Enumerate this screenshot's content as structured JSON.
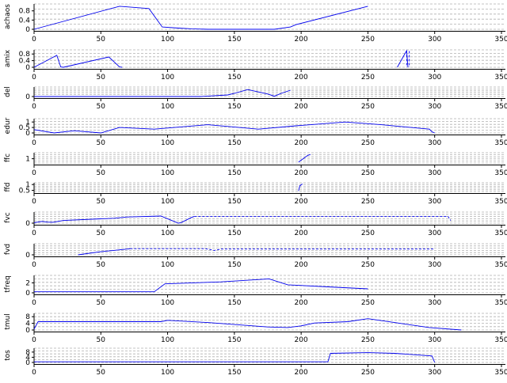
{
  "chart_data": [
    {
      "type": "line",
      "ylabel": "achaos",
      "ylim": [
        0,
        1.1
      ],
      "yticks": [
        0,
        0.4,
        0.8
      ],
      "xlim": [
        0,
        350
      ],
      "xticks": [
        0,
        50,
        100,
        150,
        200,
        250,
        300,
        350
      ],
      "segments": [
        {
          "style": "solid",
          "points": [
            [
              0,
              0
            ],
            [
              64,
              1.0
            ],
            [
              86,
              0.9
            ],
            [
              96,
              0.1
            ],
            [
              108,
              0.05
            ],
            [
              118,
              0.02
            ],
            [
              130,
              0
            ],
            [
              180,
              0
            ],
            [
              192,
              0.1
            ],
            [
              196,
              0.2
            ],
            [
              250,
              1.0
            ]
          ]
        }
      ]
    },
    {
      "type": "line",
      "ylabel": "amix",
      "ylim": [
        0,
        1.05
      ],
      "yticks": [
        0,
        0.4,
        0.8
      ],
      "xlim": [
        0,
        350
      ],
      "xticks": [
        0,
        50,
        100,
        150,
        200,
        250,
        300,
        350
      ],
      "segments": [
        {
          "style": "solid",
          "points": [
            [
              0,
              0
            ],
            [
              17,
              0.72
            ],
            [
              20,
              0.02
            ],
            [
              22,
              0
            ],
            [
              56,
              0.62
            ],
            [
              64,
              0.02
            ],
            [
              66,
              0
            ]
          ]
        },
        {
          "style": "solid",
          "points": [
            [
              272,
              0
            ],
            [
              279,
              1.0
            ],
            [
              280,
              0
            ]
          ]
        },
        {
          "style": "dashed",
          "points": [
            [
              279,
              0.98
            ],
            [
              279,
              0
            ]
          ]
        },
        {
          "style": "dashed",
          "points": [
            [
              281,
              0.98
            ],
            [
              281,
              0
            ]
          ]
        }
      ]
    },
    {
      "type": "line",
      "ylabel": "del",
      "ylim": [
        0,
        0.3
      ],
      "yticks": [
        0
      ],
      "xlim": [
        0,
        350
      ],
      "xticks": [
        0,
        50,
        100,
        150,
        200,
        250,
        300,
        350
      ],
      "segments": [
        {
          "style": "solid",
          "points": [
            [
              0,
              0
            ],
            [
              125,
              0
            ],
            [
              145,
              0.05
            ],
            [
              150,
              0.1
            ],
            [
              160,
              0.22
            ],
            [
              175,
              0.08
            ],
            [
              180,
              0.01
            ],
            [
              185,
              0.1
            ],
            [
              192,
              0.2
            ]
          ]
        }
      ]
    },
    {
      "type": "line",
      "ylabel": "edur",
      "ylim": [
        0,
        1.3
      ],
      "yticks": [
        0,
        0.5,
        1
      ],
      "xlim": [
        0,
        350
      ],
      "xticks": [
        0,
        50,
        100,
        150,
        200,
        250,
        300,
        350
      ],
      "segments": [
        {
          "style": "solid",
          "points": [
            [
              0,
              0.3
            ],
            [
              15,
              0
            ],
            [
              30,
              0.2
            ],
            [
              50,
              0
            ],
            [
              64,
              0.5
            ],
            [
              90,
              0.35
            ],
            [
              130,
              0.75
            ],
            [
              168,
              0.35
            ],
            [
              196,
              0.65
            ],
            [
              233,
              1.0
            ],
            [
              260,
              0.75
            ],
            [
              296,
              0.35
            ],
            [
              298,
              0.1
            ],
            [
              300,
              0
            ]
          ]
        }
      ]
    },
    {
      "type": "line",
      "ylabel": "ffc",
      "ylim": [
        0.75,
        1.35
      ],
      "yticks": [
        1
      ],
      "xlim": [
        0,
        350
      ],
      "xticks": [
        0,
        50,
        100,
        150,
        200,
        250,
        300,
        350
      ],
      "segments": [
        {
          "style": "solid",
          "points": [
            [
              198,
              0.8
            ],
            [
              205,
              1.2
            ],
            [
              207,
              1.25
            ]
          ]
        }
      ]
    },
    {
      "type": "line",
      "ylabel": "ffd",
      "ylim": [
        0.4,
        1.15
      ],
      "yticks": [
        0.5,
        1
      ],
      "xlim": [
        0,
        350
      ],
      "xticks": [
        0,
        50,
        100,
        150,
        200,
        250,
        300,
        350
      ],
      "segments": [
        {
          "style": "solid",
          "points": [
            [
              198,
              0.45
            ],
            [
              199,
              0.9
            ],
            [
              201,
              1.05
            ]
          ]
        }
      ]
    },
    {
      "type": "line",
      "ylabel": "fvc",
      "ylim": [
        0,
        1.25
      ],
      "yticks": [
        0
      ],
      "xlim": [
        0,
        350
      ],
      "xticks": [
        0,
        50,
        100,
        150,
        200,
        250,
        300,
        350
      ],
      "segments": [
        {
          "style": "solid",
          "points": [
            [
              0,
              0.05
            ],
            [
              6,
              0.2
            ],
            [
              10,
              0.12
            ],
            [
              14,
              0.1
            ],
            [
              18,
              0.2
            ],
            [
              22,
              0.3
            ],
            [
              60,
              0.55
            ],
            [
              70,
              0.7
            ],
            [
              95,
              0.8
            ],
            [
              108,
              0
            ],
            [
              110,
              0.05
            ],
            [
              118,
              0.65
            ],
            [
              120,
              0.75
            ]
          ]
        },
        {
          "style": "dashed",
          "points": [
            [
              120,
              0.75
            ],
            [
              310,
              0.75
            ],
            [
              312,
              0.3
            ]
          ]
        }
      ]
    },
    {
      "type": "line",
      "ylabel": "fvd",
      "ylim": [
        0,
        1.25
      ],
      "yticks": [
        0
      ],
      "xlim": [
        0,
        350
      ],
      "xticks": [
        0,
        50,
        100,
        150,
        200,
        250,
        300,
        350
      ],
      "segments": [
        {
          "style": "solid",
          "points": [
            [
              33,
              0
            ],
            [
              50,
              0.35
            ],
            [
              70,
              0.65
            ],
            [
              72,
              0.7
            ]
          ]
        },
        {
          "style": "dashed",
          "points": [
            [
              72,
              0.7
            ],
            [
              128,
              0.7
            ],
            [
              135,
              0.5
            ],
            [
              140,
              0.65
            ],
            [
              300,
              0.65
            ]
          ]
        }
      ]
    },
    {
      "type": "line",
      "ylabel": "tfreq",
      "ylim": [
        0,
        3.5
      ],
      "yticks": [
        0,
        2
      ],
      "xlim": [
        0,
        350
      ],
      "xticks": [
        0,
        50,
        100,
        150,
        200,
        250,
        300,
        350
      ],
      "segments": [
        {
          "style": "solid",
          "points": [
            [
              0,
              0.2
            ],
            [
              90,
              0.2
            ],
            [
              98,
              1.8
            ],
            [
              140,
              2.2
            ],
            [
              176,
              2.8
            ],
            [
              190,
              1.6
            ],
            [
              220,
              1.2
            ],
            [
              250,
              0.8
            ]
          ]
        }
      ]
    },
    {
      "type": "line",
      "ylabel": "tmul",
      "ylim": [
        0,
        10
      ],
      "yticks": [
        0,
        4,
        8
      ],
      "xlim": [
        0,
        350
      ],
      "xticks": [
        0,
        50,
        100,
        150,
        200,
        250,
        300,
        350
      ],
      "segments": [
        {
          "style": "solid",
          "points": [
            [
              0,
              0.5
            ],
            [
              3,
              5
            ],
            [
              95,
              5
            ],
            [
              100,
              5.8
            ],
            [
              130,
              4.5
            ],
            [
              175,
              1.8
            ],
            [
              190,
              1.5
            ],
            [
              200,
              2.5
            ],
            [
              210,
              4.2
            ],
            [
              235,
              5.0
            ],
            [
              250,
              6.8
            ],
            [
              270,
              4.5
            ],
            [
              296,
              1.5
            ],
            [
              320,
              0
            ]
          ]
        }
      ]
    },
    {
      "type": "line",
      "ylabel": "tos",
      "ylim": [
        0,
        11
      ],
      "yticks": [
        0,
        4,
        8
      ],
      "xlim": [
        0,
        350
      ],
      "xticks": [
        0,
        50,
        100,
        150,
        200,
        250,
        300,
        350
      ],
      "segments": [
        {
          "style": "solid",
          "points": [
            [
              0,
              0.5
            ],
            [
              220,
              0.5
            ],
            [
              222,
              7
            ],
            [
              250,
              7.6
            ],
            [
              270,
              7.0
            ],
            [
              298,
              5.0
            ],
            [
              300,
              0
            ]
          ]
        }
      ]
    }
  ]
}
